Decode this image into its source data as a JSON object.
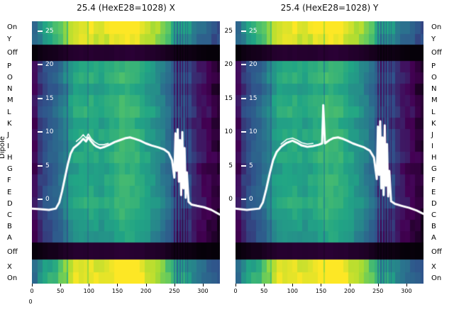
{
  "titles": {
    "left": "25.4 (HexE28=1028) X",
    "right": "25.4 (HexE28=1028) Y"
  },
  "axis": {
    "dipole_label": "Dipole",
    "corner_zero": "0",
    "row_labels": [
      "On",
      "Y",
      "Off",
      "P",
      "O",
      "N",
      "M",
      "L",
      "K",
      "J",
      "I",
      "H",
      "G",
      "F",
      "E",
      "D",
      "C",
      "B",
      "A",
      "Off",
      "X",
      "On"
    ],
    "x_tick_labels": [
      "0",
      "50",
      "100",
      "150",
      "200",
      "250",
      "300"
    ],
    "overlay_tick_labels": [
      "25",
      "20",
      "15",
      "10",
      "5",
      "0"
    ]
  },
  "chart_data": {
    "type": "heatmap",
    "title_left": "25.4 (HexE28=1028) X",
    "title_right": "25.4 (HexE28=1028) Y",
    "x_domain": [
      0,
      330
    ],
    "x_ticks": [
      0,
      50,
      100,
      150,
      200,
      250,
      300
    ],
    "bin": 9,
    "overlay_axis": {
      "ticks": [
        25,
        20,
        15,
        10,
        5,
        0
      ],
      "v0_rel": 0.678,
      "v25_rel": 0.038
    },
    "colormap_stops": [
      [
        0.0,
        "#060109"
      ],
      [
        0.14,
        "#440154"
      ],
      [
        0.3,
        "#30528b"
      ],
      [
        0.45,
        "#2a768e"
      ],
      [
        0.6,
        "#21a585"
      ],
      [
        0.75,
        "#5ec962"
      ],
      [
        0.88,
        "#aadc32"
      ],
      [
        1.0,
        "#fde725"
      ]
    ],
    "line_color": "#ffffff",
    "rows": [
      {
        "label": "On",
        "h": 0.0487,
        "gain": 1.25,
        "offset": 0.22
      },
      {
        "label": "Y",
        "h": 0.0405,
        "gain": 1.25,
        "offset": 0.18
      },
      {
        "label": "Off",
        "h": 0.0622,
        "gain": 0.15,
        "offset": -0.02
      },
      {
        "label": "P",
        "h": 0.0436,
        "gain": 1.0,
        "offset": 0.0
      },
      {
        "label": "O",
        "h": 0.0436,
        "gain": 1.0,
        "offset": 0.02
      },
      {
        "label": "N",
        "h": 0.0436,
        "gain": 1.0,
        "offset": -0.02
      },
      {
        "label": "M",
        "h": 0.0436,
        "gain": 1.0,
        "offset": 0.01
      },
      {
        "label": "L",
        "h": 0.0436,
        "gain": 1.0,
        "offset": 0.03
      },
      {
        "label": "K",
        "h": 0.0436,
        "gain": 1.0,
        "offset": -0.01
      },
      {
        "label": "J",
        "h": 0.0436,
        "gain": 1.0,
        "offset": 0.02
      },
      {
        "label": "I",
        "h": 0.0436,
        "gain": 1.0,
        "offset": 0.0
      },
      {
        "label": "H",
        "h": 0.0436,
        "gain": 1.0,
        "offset": 0.02
      },
      {
        "label": "G",
        "h": 0.0436,
        "gain": 1.0,
        "offset": -0.02
      },
      {
        "label": "F",
        "h": 0.0436,
        "gain": 1.0,
        "offset": 0.01
      },
      {
        "label": "E",
        "h": 0.0436,
        "gain": 1.0,
        "offset": 0.0
      },
      {
        "label": "D",
        "h": 0.0436,
        "gain": 1.0,
        "offset": 0.02
      },
      {
        "label": "C",
        "h": 0.0436,
        "gain": 1.0,
        "offset": -0.01
      },
      {
        "label": "B",
        "h": 0.0436,
        "gain": 1.0,
        "offset": -0.03
      },
      {
        "label": "A",
        "h": 0.0436,
        "gain": 1.0,
        "offset": -0.05
      },
      {
        "label": "Off",
        "h": 0.0649,
        "gain": 0.15,
        "offset": -0.02
      },
      {
        "label": "X",
        "h": 0.0487,
        "gain": 1.25,
        "offset": 0.2
      },
      {
        "label": "On",
        "h": 0.0378,
        "gain": 1.25,
        "offset": 0.22
      }
    ],
    "base_profile": [
      [
        0,
        0.1
      ],
      [
        6,
        0.18
      ],
      [
        12,
        0.24
      ],
      [
        25,
        0.3
      ],
      [
        40,
        0.36
      ],
      [
        55,
        0.45
      ],
      [
        65,
        0.55
      ],
      [
        80,
        0.6
      ],
      [
        100,
        0.62
      ],
      [
        120,
        0.58
      ],
      [
        140,
        0.62
      ],
      [
        160,
        0.67
      ],
      [
        175,
        0.65
      ],
      [
        190,
        0.62
      ],
      [
        205,
        0.57
      ],
      [
        220,
        0.52
      ],
      [
        235,
        0.44
      ],
      [
        245,
        0.36
      ],
      [
        250,
        0.32
      ],
      [
        272,
        0.3
      ],
      [
        280,
        0.22
      ],
      [
        295,
        0.17
      ],
      [
        310,
        0.13
      ],
      [
        320,
        0.1
      ],
      [
        330,
        0.07
      ]
    ],
    "panels": [
      {
        "id": "X",
        "stripes": [
          {
            "x": 61,
            "w": 1.5,
            "dv": -0.1
          },
          {
            "x": 97,
            "w": 1.5,
            "dv": -0.08
          },
          {
            "x": 249,
            "w": 2,
            "dv": -0.13
          },
          {
            "x": 254,
            "w": 2,
            "dv": -0.15
          },
          {
            "x": 259,
            "w": 1.5,
            "dv": -0.12
          },
          {
            "x": 263,
            "w": 2,
            "dv": -0.16
          },
          {
            "x": 268,
            "w": 2,
            "dv": -0.12
          },
          {
            "x": 272,
            "w": 1.5,
            "dv": -0.1
          }
        ],
        "line": [
          [
            0,
            -1.4
          ],
          [
            15,
            -1.5
          ],
          [
            30,
            -1.6
          ],
          [
            42,
            -1.4
          ],
          [
            48,
            -0.5
          ],
          [
            53,
            1.2
          ],
          [
            58,
            3.2
          ],
          [
            63,
            5.2
          ],
          [
            68,
            6.8
          ],
          [
            73,
            7.6
          ],
          [
            80,
            8.1
          ],
          [
            85,
            8.5
          ],
          [
            90,
            9.0
          ],
          [
            95,
            8.6
          ],
          [
            99,
            9.2
          ],
          [
            104,
            8.6
          ],
          [
            109,
            8.1
          ],
          [
            114,
            7.8
          ],
          [
            120,
            7.6
          ],
          [
            128,
            7.8
          ],
          [
            136,
            8.1
          ],
          [
            145,
            8.5
          ],
          [
            155,
            8.8
          ],
          [
            165,
            9.1
          ],
          [
            172,
            9.2
          ],
          [
            180,
            9.0
          ],
          [
            190,
            8.7
          ],
          [
            200,
            8.3
          ],
          [
            210,
            8.0
          ],
          [
            222,
            7.7
          ],
          [
            232,
            7.4
          ],
          [
            240,
            6.9
          ],
          [
            246,
            5.8
          ],
          [
            250,
            3.2
          ],
          [
            252,
            9.8
          ],
          [
            254,
            4.2
          ],
          [
            256,
            10.4
          ],
          [
            258,
            2.6
          ],
          [
            260,
            8.8
          ],
          [
            262,
            0.6
          ],
          [
            264,
            10.0
          ],
          [
            266,
            1.6
          ],
          [
            268,
            7.6
          ],
          [
            270,
            0.2
          ],
          [
            272,
            4.0
          ],
          [
            275,
            -0.4
          ],
          [
            280,
            -0.8
          ],
          [
            290,
            -1.0
          ],
          [
            302,
            -1.2
          ],
          [
            315,
            -1.6
          ],
          [
            330,
            -2.3
          ]
        ],
        "line2": [
          [
            78,
            8.6
          ],
          [
            85,
            9.1
          ],
          [
            90,
            9.6
          ],
          [
            95,
            9.1
          ],
          [
            99,
            9.7
          ],
          [
            104,
            9.0
          ],
          [
            110,
            8.5
          ],
          [
            118,
            8.1
          ],
          [
            126,
            8.1
          ],
          [
            134,
            8.3
          ]
        ]
      },
      {
        "id": "Y",
        "stripes": [
          {
            "x": 61,
            "w": 1.5,
            "dv": -0.08
          },
          {
            "x": 154,
            "w": 2,
            "dv": -0.12
          },
          {
            "x": 249,
            "w": 2,
            "dv": -0.13
          },
          {
            "x": 254,
            "w": 2,
            "dv": -0.15
          },
          {
            "x": 259,
            "w": 1.5,
            "dv": -0.12
          },
          {
            "x": 263,
            "w": 2,
            "dv": -0.16
          },
          {
            "x": 268,
            "w": 2,
            "dv": -0.12
          },
          {
            "x": 272,
            "w": 1.5,
            "dv": -0.1
          }
        ],
        "line": [
          [
            0,
            -1.4
          ],
          [
            20,
            -1.6
          ],
          [
            42,
            -1.4
          ],
          [
            48,
            -0.5
          ],
          [
            54,
            1.5
          ],
          [
            60,
            3.8
          ],
          [
            66,
            5.8
          ],
          [
            72,
            7.0
          ],
          [
            80,
            7.8
          ],
          [
            90,
            8.4
          ],
          [
            100,
            8.7
          ],
          [
            108,
            8.4
          ],
          [
            116,
            8.0
          ],
          [
            126,
            7.8
          ],
          [
            136,
            7.9
          ],
          [
            146,
            8.1
          ],
          [
            152,
            8.3
          ],
          [
            154,
            14.0
          ],
          [
            157,
            8.3
          ],
          [
            165,
            8.8
          ],
          [
            172,
            9.1
          ],
          [
            180,
            9.2
          ],
          [
            188,
            9.0
          ],
          [
            196,
            8.7
          ],
          [
            206,
            8.3
          ],
          [
            216,
            8.0
          ],
          [
            226,
            7.7
          ],
          [
            236,
            7.2
          ],
          [
            243,
            6.2
          ],
          [
            248,
            3.0
          ],
          [
            250,
            10.8
          ],
          [
            252,
            3.6
          ],
          [
            254,
            11.6
          ],
          [
            256,
            1.6
          ],
          [
            258,
            9.2
          ],
          [
            260,
            0.6
          ],
          [
            262,
            11.0
          ],
          [
            264,
            2.0
          ],
          [
            266,
            8.2
          ],
          [
            268,
            0.4
          ],
          [
            270,
            4.2
          ],
          [
            273,
            -0.3
          ],
          [
            280,
            -0.7
          ],
          [
            292,
            -1.0
          ],
          [
            305,
            -1.3
          ],
          [
            318,
            -1.7
          ],
          [
            330,
            -2.2
          ]
        ],
        "line2": [
          [
            80,
            8.2
          ],
          [
            90,
            8.9
          ],
          [
            100,
            9.1
          ],
          [
            108,
            8.8
          ],
          [
            116,
            8.4
          ],
          [
            126,
            8.2
          ],
          [
            136,
            8.3
          ]
        ]
      }
    ]
  }
}
